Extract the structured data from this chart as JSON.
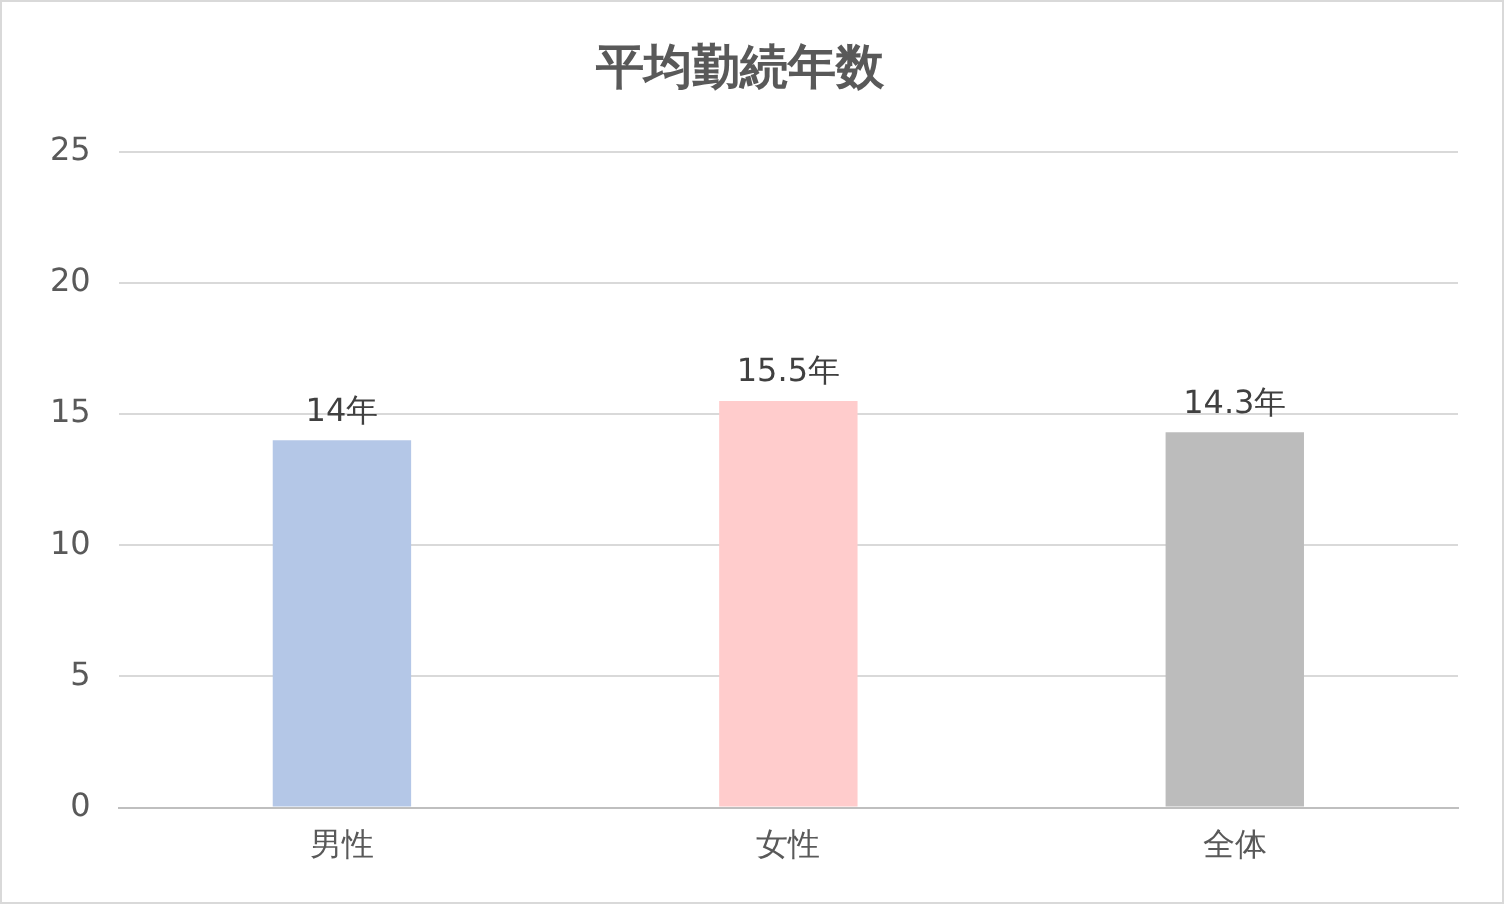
{
  "chart_data": {
    "type": "bar",
    "title": "平均勤続年数",
    "categories": [
      "男性",
      "女性",
      "全体"
    ],
    "values": [
      14,
      15.5,
      14.3
    ],
    "colors": [
      "#b4c7e7",
      "#ffcccc",
      "#bcbcbc"
    ],
    "value_labels": [
      "14年",
      "15.5年",
      "14.3年"
    ],
    "ylim": [
      0,
      25
    ],
    "yticks": [
      0,
      5,
      10,
      15,
      20,
      25
    ],
    "grid": "y",
    "legend": false
  }
}
